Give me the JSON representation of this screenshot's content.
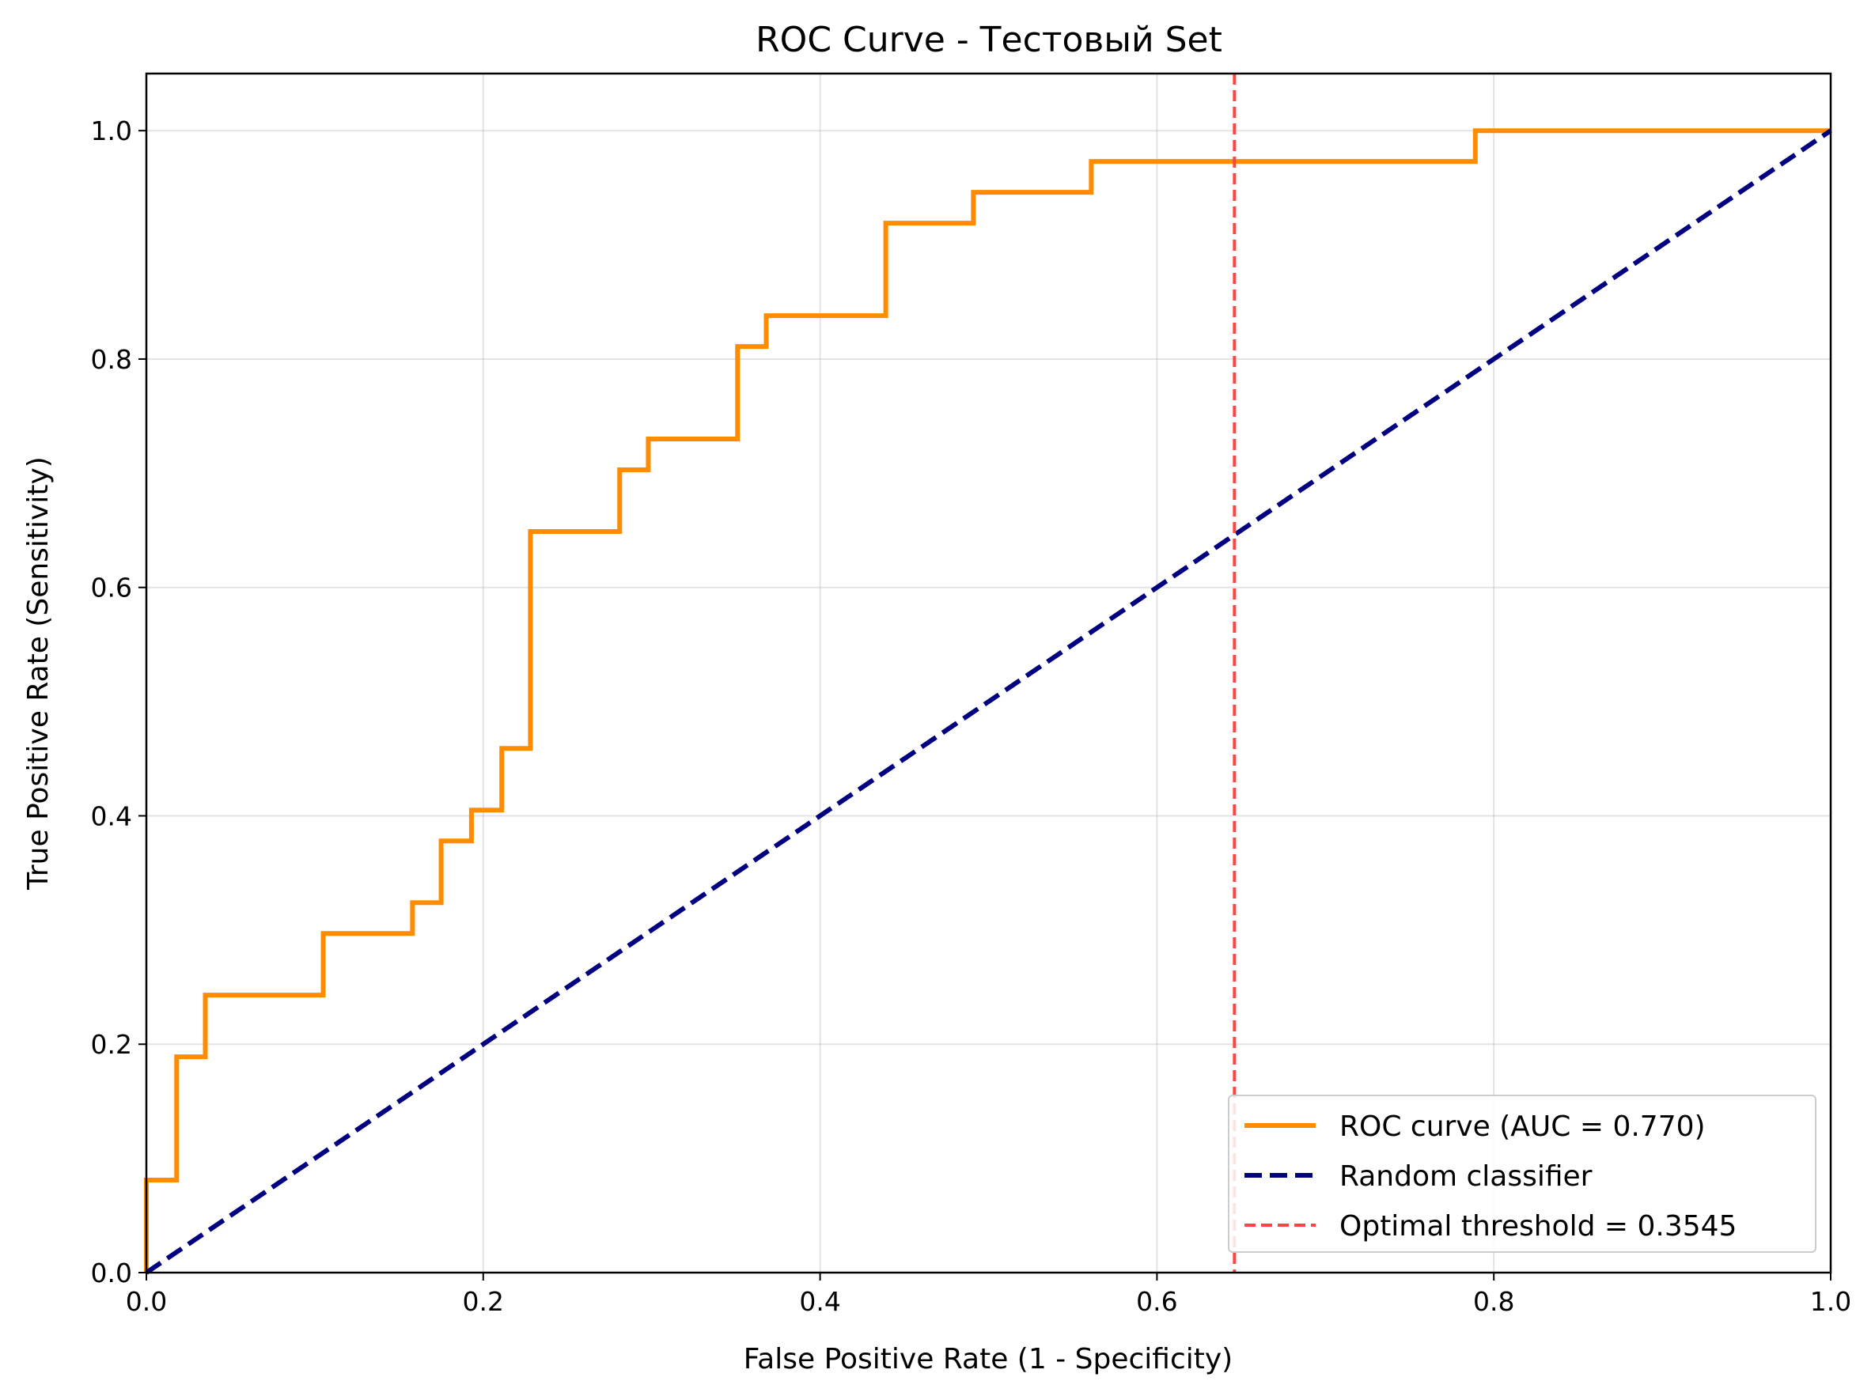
{
  "chart_data": {
    "type": "line",
    "title": "ROC Curve - Тестовый Set",
    "xlabel": "False Positive Rate (1 - Specificity)",
    "ylabel": "True Positive Rate (Sensitivity)",
    "xlim": [
      0.0,
      1.0
    ],
    "ylim": [
      0.0,
      1.05
    ],
    "xticks": [
      "0.0",
      "0.2",
      "0.4",
      "0.6",
      "0.8",
      "1.0"
    ],
    "yticks": [
      "0.0",
      "0.2",
      "0.4",
      "0.6",
      "0.8",
      "1.0"
    ],
    "grid": true,
    "legend_position": "lower-right",
    "series": [
      {
        "name": "ROC curve (AUC = 0.770)",
        "color": "#ff8c00",
        "style": "solid",
        "x": [
          0.0,
          0.0,
          0.018,
          0.018,
          0.035,
          0.035,
          0.105,
          0.105,
          0.158,
          0.158,
          0.175,
          0.175,
          0.193,
          0.193,
          0.211,
          0.211,
          0.228,
          0.228,
          0.281,
          0.281,
          0.298,
          0.298,
          0.351,
          0.351,
          0.368,
          0.368,
          0.439,
          0.439,
          0.491,
          0.491,
          0.561,
          0.561,
          0.789,
          0.789,
          1.0
        ],
        "y": [
          0.0,
          0.081,
          0.081,
          0.189,
          0.189,
          0.243,
          0.243,
          0.297,
          0.297,
          0.324,
          0.324,
          0.378,
          0.378,
          0.405,
          0.405,
          0.459,
          0.459,
          0.649,
          0.649,
          0.703,
          0.703,
          0.73,
          0.73,
          0.811,
          0.811,
          0.838,
          0.838,
          0.919,
          0.919,
          0.946,
          0.946,
          0.973,
          0.973,
          1.0,
          1.0
        ]
      },
      {
        "name": "Random classifier",
        "color": "#000080",
        "style": "dashed",
        "x": [
          0.0,
          1.0
        ],
        "y": [
          0.0,
          1.0
        ]
      }
    ],
    "vline": {
      "name": "Optimal threshold = 0.3545",
      "color": "#ff4444",
      "style": "dashed",
      "x": 0.646
    }
  }
}
